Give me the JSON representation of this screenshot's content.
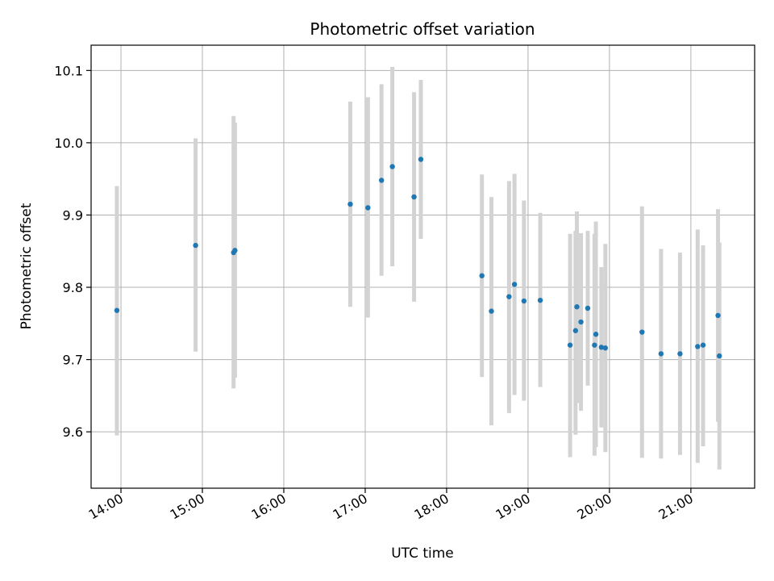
{
  "chart_data": {
    "type": "scatter",
    "title": "Photometric offset variation",
    "xlabel": "UTC time",
    "ylabel": "Photometric offset",
    "x_ticks": [
      "14:00",
      "15:00",
      "16:00",
      "17:00",
      "18:00",
      "19:00",
      "20:00",
      "21:00"
    ],
    "y_ticks": [
      "9.6",
      "9.7",
      "9.8",
      "9.9",
      "10.0",
      "10.1"
    ],
    "xlim": [
      "13:38",
      "21:47"
    ],
    "ylim": [
      9.522,
      10.135
    ],
    "grid": true,
    "colors": {
      "point": "#1f77b4",
      "errorbar": "#d3d3d3",
      "grid": "#b0b0b0"
    },
    "points": [
      {
        "t": "13:57",
        "y": 9.768,
        "lo": 9.595,
        "hi": 9.94
      },
      {
        "t": "14:55",
        "y": 9.858,
        "lo": 9.711,
        "hi": 10.006
      },
      {
        "t": "15:23",
        "y": 9.848,
        "lo": 9.66,
        "hi": 10.037
      },
      {
        "t": "15:24",
        "y": 9.851,
        "lo": 9.675,
        "hi": 10.028
      },
      {
        "t": "16:49",
        "y": 9.915,
        "lo": 9.773,
        "hi": 10.057
      },
      {
        "t": "17:02",
        "y": 9.91,
        "lo": 9.758,
        "hi": 10.063
      },
      {
        "t": "17:12",
        "y": 9.948,
        "lo": 9.816,
        "hi": 10.081
      },
      {
        "t": "17:20",
        "y": 9.967,
        "lo": 9.829,
        "hi": 10.105
      },
      {
        "t": "17:36",
        "y": 9.925,
        "lo": 9.78,
        "hi": 10.07
      },
      {
        "t": "17:41",
        "y": 9.977,
        "lo": 9.867,
        "hi": 10.087
      },
      {
        "t": "18:26",
        "y": 9.816,
        "lo": 9.676,
        "hi": 9.956
      },
      {
        "t": "18:33",
        "y": 9.767,
        "lo": 9.609,
        "hi": 9.925
      },
      {
        "t": "18:46",
        "y": 9.787,
        "lo": 9.626,
        "hi": 9.947
      },
      {
        "t": "18:50",
        "y": 9.804,
        "lo": 9.651,
        "hi": 9.957
      },
      {
        "t": "18:57",
        "y": 9.781,
        "lo": 9.643,
        "hi": 9.92
      },
      {
        "t": "19:09",
        "y": 9.782,
        "lo": 9.662,
        "hi": 9.903
      },
      {
        "t": "19:31",
        "y": 9.72,
        "lo": 9.565,
        "hi": 9.874
      },
      {
        "t": "19:35",
        "y": 9.74,
        "lo": 9.596,
        "hi": 9.878
      },
      {
        "t": "19:36",
        "y": 9.773,
        "lo": 9.64,
        "hi": 9.905
      },
      {
        "t": "19:39",
        "y": 9.752,
        "lo": 9.629,
        "hi": 9.875
      },
      {
        "t": "19:44",
        "y": 9.771,
        "lo": 9.664,
        "hi": 9.878
      },
      {
        "t": "19:49",
        "y": 9.72,
        "lo": 9.567,
        "hi": 9.874
      },
      {
        "t": "19:50",
        "y": 9.735,
        "lo": 9.579,
        "hi": 9.891
      },
      {
        "t": "19:54",
        "y": 9.717,
        "lo": 9.606,
        "hi": 9.828
      },
      {
        "t": "19:57",
        "y": 9.716,
        "lo": 9.572,
        "hi": 9.86
      },
      {
        "t": "20:24",
        "y": 9.738,
        "lo": 9.564,
        "hi": 9.912
      },
      {
        "t": "20:38",
        "y": 9.708,
        "lo": 9.563,
        "hi": 9.853
      },
      {
        "t": "20:52",
        "y": 9.708,
        "lo": 9.568,
        "hi": 9.848
      },
      {
        "t": "21:05",
        "y": 9.718,
        "lo": 9.557,
        "hi": 9.88
      },
      {
        "t": "21:09",
        "y": 9.72,
        "lo": 9.58,
        "hi": 9.858
      },
      {
        "t": "21:20",
        "y": 9.761,
        "lo": 9.614,
        "hi": 9.908
      },
      {
        "t": "21:21",
        "y": 9.705,
        "lo": 9.548,
        "hi": 9.862
      }
    ]
  }
}
